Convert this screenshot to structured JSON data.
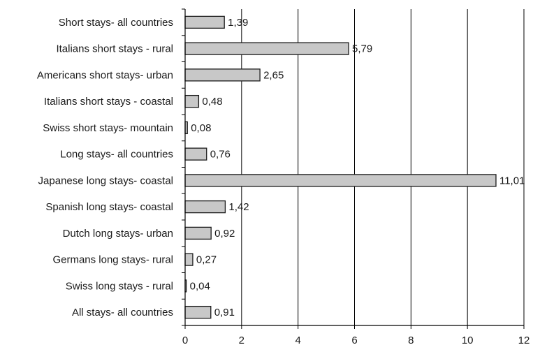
{
  "chart_data": {
    "type": "bar",
    "orientation": "horizontal",
    "categories": [
      "Short stays- all countries",
      "Italians short stays - rural",
      "Americans short stays- urban",
      "Italians short stays - coastal",
      "Swiss short stays- mountain",
      "Long stays- all countries",
      "Japanese long stays- coastal",
      "Spanish long stays- coastal",
      "Dutch long stays- urban",
      "Germans long stays- rural",
      "Swiss long stays - rural",
      "All stays- all countries"
    ],
    "values": [
      1.39,
      5.79,
      2.65,
      0.48,
      0.08,
      0.76,
      11.01,
      1.42,
      0.92,
      0.27,
      0.04,
      0.91
    ],
    "value_labels": [
      "1,39",
      "5,79",
      "2,65",
      "0,48",
      "0,08",
      "0,76",
      "11,01",
      "1,42",
      "0,92",
      "0,27",
      "0,04",
      "0,91"
    ],
    "xlim": [
      0,
      12
    ],
    "xticks": [
      0,
      2,
      4,
      6,
      8,
      10,
      12
    ],
    "xtick_labels": [
      "0",
      "2",
      "4",
      "6",
      "8",
      "10",
      "12"
    ],
    "grid": "vertical",
    "legend": "none",
    "title": "",
    "xlabel": "",
    "ylabel": "",
    "colors": {
      "bar_fill": "#c8c8c8",
      "bar_stroke": "#1a1a1a",
      "grid": "#000000",
      "axis": "#000000"
    }
  }
}
